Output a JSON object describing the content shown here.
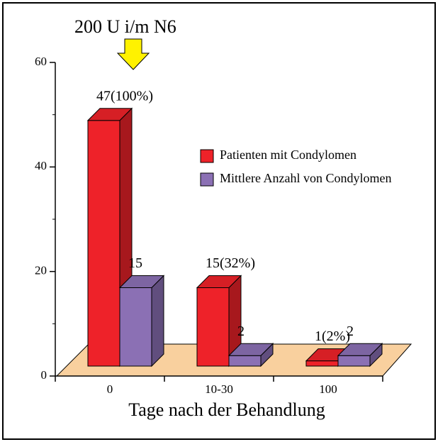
{
  "chart_data": {
    "type": "bar3d",
    "annotation": "200 U i/m N6",
    "xlabel": "Tage nach der Behandlung",
    "categories": [
      "0",
      "10-30",
      "100"
    ],
    "series": [
      {
        "name": "Patienten mit Condylomen",
        "color": "#ee2229",
        "values": [
          47,
          15,
          1
        ],
        "value_labels": [
          "47(100%)",
          "15(32%)",
          "1(2%)"
        ]
      },
      {
        "name": "Mittlere Anzahl von Condylomen",
        "color": "#8b70b4",
        "values": [
          15,
          2,
          2
        ]
      }
    ],
    "ylim": [
      0,
      60
    ],
    "yticks": [
      0,
      20,
      40,
      60
    ],
    "minor_yticks": [
      10,
      30,
      50
    ],
    "floor_color": "#f9d09e",
    "arrow_color": "#fff200"
  }
}
